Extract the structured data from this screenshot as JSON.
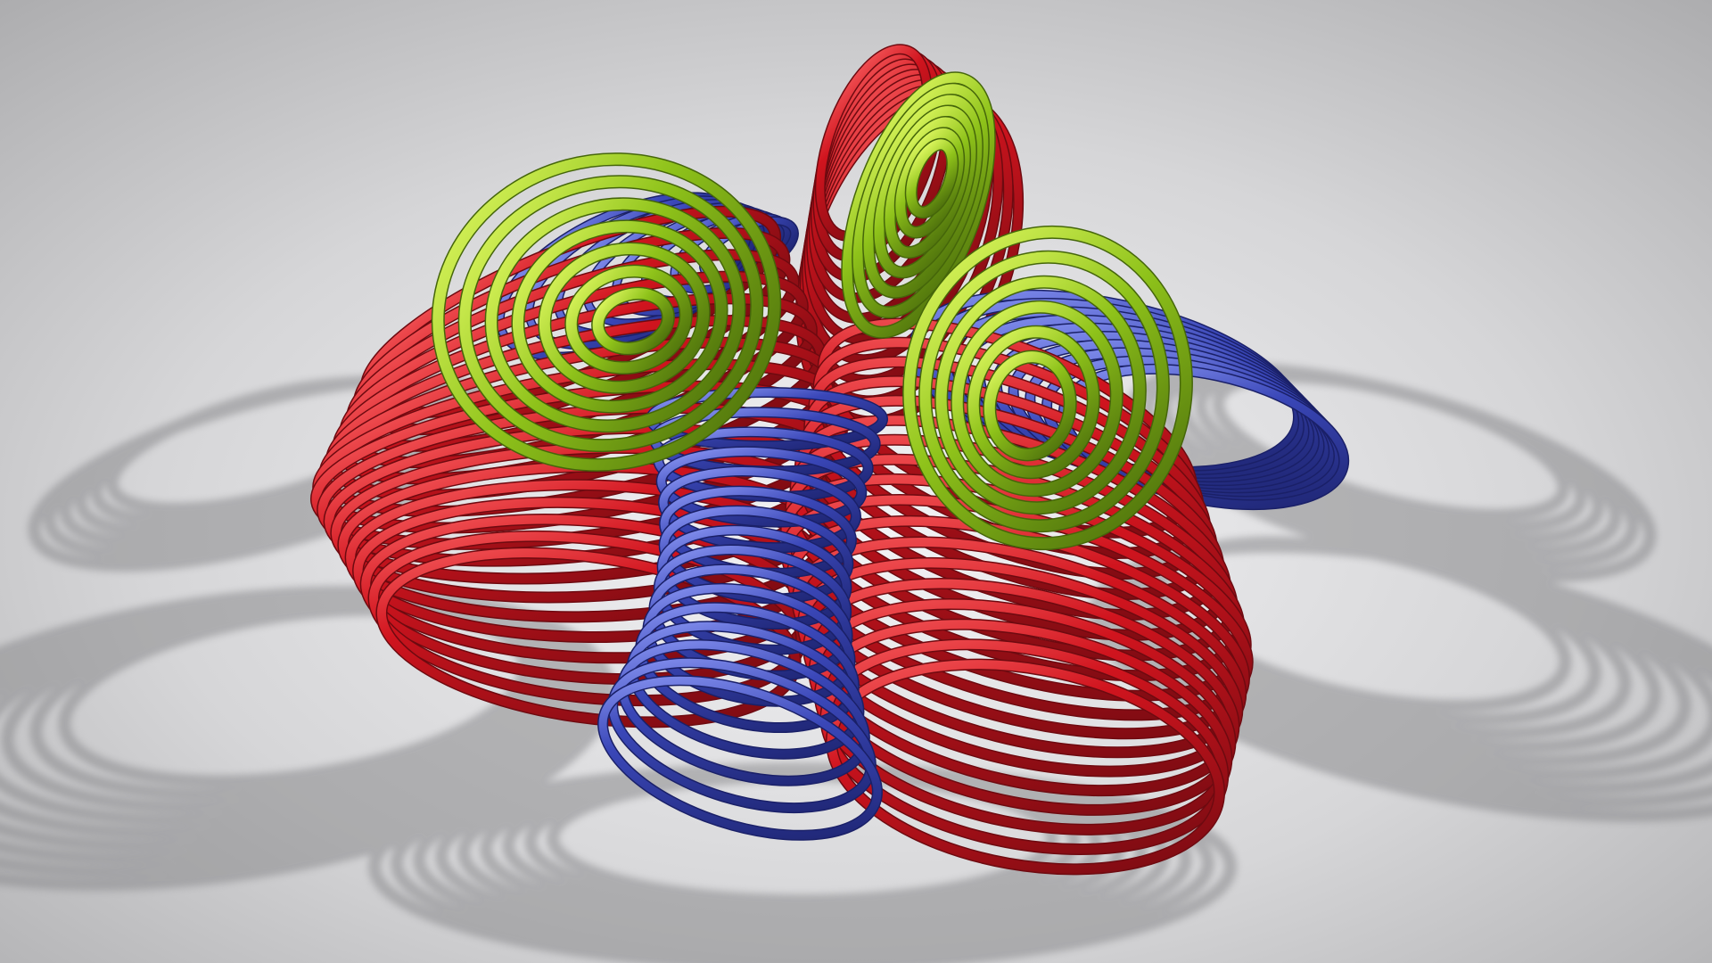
{
  "scene": {
    "background_light": "#f2f2f4",
    "background_mid": "#d4d4d6",
    "background_dark": "#a9a9ab",
    "shadow_color": "#8e8e91",
    "colors": {
      "red": "#c8141e",
      "red_dark": "#7a0d12",
      "red_highlight": "#ff7a7a",
      "blue": "#3a47b8",
      "blue_dark": "#1c2270",
      "blue_highlight": "#9aa6ff",
      "green": "#8ec21a",
      "green_dark": "#4a6e0a",
      "green_highlight": "#e9ff6a"
    },
    "groups": [
      {
        "name": "red-left-coil",
        "color": "red",
        "rings": 18
      },
      {
        "name": "red-right-coil",
        "color": "red",
        "rings": 18
      },
      {
        "name": "red-top-coil",
        "color": "red",
        "rings": 10
      },
      {
        "name": "blue-center-coil",
        "color": "blue",
        "rings": 16
      },
      {
        "name": "blue-right-coil",
        "color": "blue",
        "rings": 10
      },
      {
        "name": "blue-top-left-coil",
        "color": "blue",
        "rings": 8
      },
      {
        "name": "green-left-spiral",
        "color": "green",
        "rings": 7
      },
      {
        "name": "green-right-spiral",
        "color": "green",
        "rings": 6
      },
      {
        "name": "green-top-spiral",
        "color": "green",
        "rings": 7
      }
    ]
  }
}
